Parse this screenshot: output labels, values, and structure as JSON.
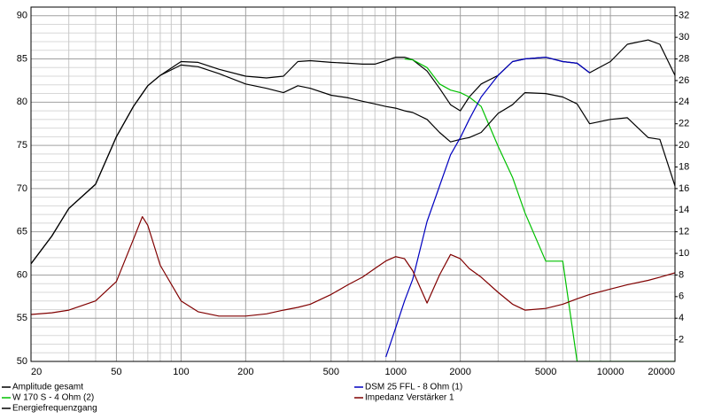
{
  "chart_data": {
    "type": "line",
    "x": [
      20,
      25,
      30,
      40,
      50,
      60,
      66,
      70,
      80,
      100,
      120,
      150,
      200,
      250,
      300,
      350,
      400,
      500,
      600,
      700,
      800,
      900,
      1000,
      1100,
      1200,
      1400,
      1600,
      1800,
      2000,
      2200,
      2500,
      3000,
      3500,
      4000,
      5000,
      6000,
      7000,
      8000,
      10000,
      12000,
      15000,
      17000,
      20000
    ],
    "xlim": [
      20,
      20000
    ],
    "xlog": true,
    "xticks": [
      20,
      50,
      100,
      200,
      500,
      1000,
      2000,
      5000,
      10000,
      20000
    ],
    "xminor": [
      30,
      40,
      60,
      70,
      80,
      90,
      300,
      400,
      600,
      700,
      800,
      900,
      3000,
      4000,
      6000,
      7000,
      8000,
      9000
    ],
    "ylim": [
      50,
      91
    ],
    "yticks": [
      50,
      55,
      60,
      65,
      70,
      75,
      80,
      85,
      90
    ],
    "yminor": [
      51,
      52,
      53,
      54,
      56,
      57,
      58,
      59,
      61,
      62,
      63,
      64,
      66,
      67,
      68,
      69,
      71,
      72,
      73,
      74,
      76,
      77,
      78,
      79,
      81,
      82,
      83,
      84,
      86,
      87,
      88,
      89
    ],
    "y2lim": [
      0,
      32.8
    ],
    "y2ticks": [
      2,
      4,
      6,
      8,
      10,
      12,
      14,
      16,
      18,
      20,
      22,
      24,
      26,
      28,
      30,
      32
    ],
    "grid": true,
    "series": [
      {
        "name": "Amplitude gesamt",
        "color": "#000000",
        "values": [
          61.3,
          64.5,
          67.7,
          70.5,
          76,
          79.5,
          81,
          81.9,
          83.1,
          84.7,
          84.6,
          83.8,
          83,
          82.8,
          83,
          84.7,
          84.8,
          84.6,
          84.5,
          84.4,
          84.4,
          84.8,
          85.2,
          85.2,
          84.9,
          83.6,
          81.6,
          79.7,
          79,
          80.6,
          82.1,
          83.1,
          84.7,
          85,
          85.2,
          84.7,
          84.5,
          83.4,
          84.7,
          86.7,
          87.2,
          86.7,
          83.1
        ]
      },
      {
        "name": "W 170 S - 4 Ohm (2)",
        "color": "#00c000",
        "values": [
          null,
          null,
          null,
          null,
          null,
          null,
          null,
          null,
          null,
          null,
          null,
          null,
          null,
          null,
          null,
          null,
          null,
          null,
          null,
          null,
          null,
          null,
          null,
          85,
          84.9,
          84,
          82.1,
          81.4,
          81.1,
          80.6,
          79.5,
          74.9,
          71.3,
          67.2,
          61.6,
          61.6,
          50,
          50,
          50,
          50,
          50,
          50,
          50
        ]
      },
      {
        "name": "Energiefrequenzgang",
        "color": "#000000",
        "values": [
          61.3,
          64.5,
          67.7,
          70.5,
          76,
          79.5,
          81,
          81.9,
          83.1,
          84.3,
          84.1,
          83.3,
          82.1,
          81.6,
          81.1,
          81.9,
          81.6,
          80.8,
          80.5,
          80.1,
          79.8,
          79.5,
          79.3,
          79,
          78.8,
          78,
          76.5,
          75.4,
          75.7,
          75.9,
          76.5,
          78.7,
          79.7,
          81.1,
          81,
          80.6,
          79.8,
          77.5,
          78,
          78.2,
          75.9,
          75.7,
          70.3
        ]
      },
      {
        "name": "DSM 25 FFL - 8 Ohm (1)",
        "color": "#0000c0",
        "values": [
          null,
          null,
          null,
          null,
          null,
          null,
          null,
          null,
          null,
          null,
          null,
          null,
          null,
          null,
          null,
          null,
          null,
          null,
          null,
          null,
          null,
          50.5,
          53.9,
          57,
          59.5,
          66.2,
          70.3,
          73.9,
          75.9,
          78,
          80.6,
          83.1,
          84.7,
          85,
          85.2,
          84.7,
          84.5,
          83.4,
          null,
          null,
          null,
          null,
          null
        ]
      },
      {
        "name": "Impedanz Verstärker 1",
        "color": "#800000",
        "axis": "y2",
        "values": [
          4.35,
          4.5,
          4.75,
          5.6,
          7.4,
          11.3,
          13.4,
          12.6,
          8.9,
          5.6,
          4.6,
          4.2,
          4.2,
          4.4,
          4.75,
          5,
          5.3,
          6.2,
          7.1,
          7.8,
          8.6,
          9.3,
          9.7,
          9.5,
          8.4,
          5.4,
          8,
          9.9,
          9.5,
          8.6,
          7.8,
          6.4,
          5.3,
          4.75,
          4.9,
          5.3,
          5.8,
          6.2,
          6.7,
          7.1,
          7.5,
          7.8,
          8.2
        ]
      }
    ]
  }
}
